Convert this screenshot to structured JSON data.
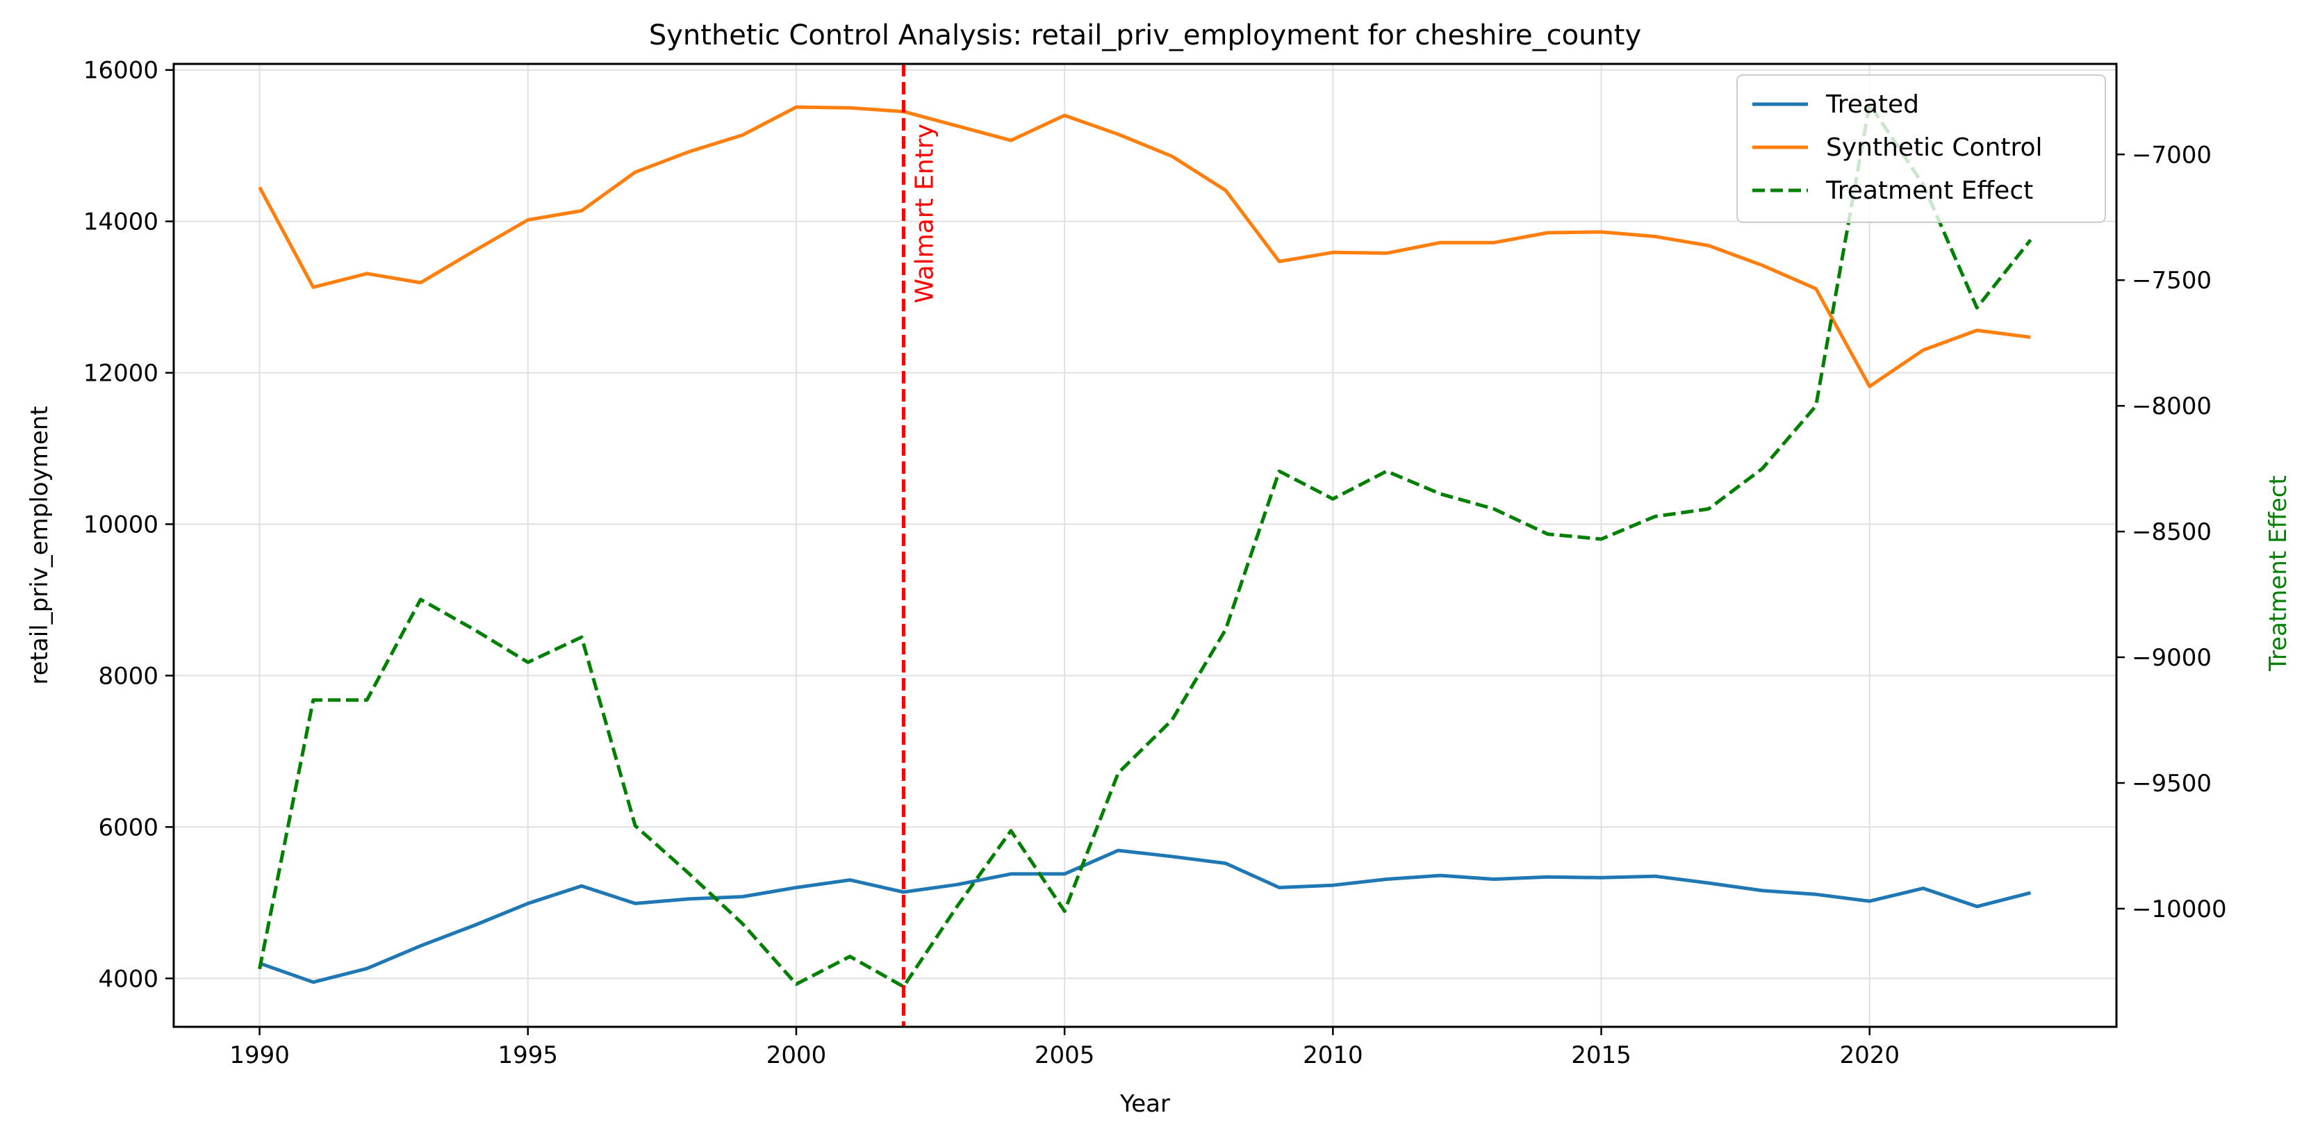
{
  "chart_data": {
    "type": "line",
    "title": "Synthetic Control Analysis: retail_priv_employment for cheshire_county",
    "xlabel": "Year",
    "ylabel": "retail_priv_employment",
    "y2label": "Treatment Effect",
    "xlim": [
      1988.4,
      2024.6
    ],
    "ylim": [
      3360,
      16080
    ],
    "y2lim": [
      -10470,
      -6640
    ],
    "xticks": [
      1990,
      1995,
      2000,
      2005,
      2010,
      2015,
      2020
    ],
    "yticks": [
      4000,
      6000,
      8000,
      10000,
      12000,
      14000,
      16000
    ],
    "y2ticks": [
      -10000,
      -9500,
      -9000,
      -8500,
      -8000,
      -7500,
      -7000
    ],
    "grid": true,
    "legend_position": "top-right",
    "annotation": {
      "label": "Walmart Entry",
      "x": 2002,
      "color": "#ff0000"
    },
    "x": [
      1990,
      1991,
      1992,
      1993,
      1994,
      1995,
      1996,
      1997,
      1998,
      1999,
      2000,
      2001,
      2002,
      2003,
      2004,
      2005,
      2006,
      2007,
      2008,
      2009,
      2010,
      2011,
      2012,
      2013,
      2014,
      2015,
      2016,
      2017,
      2018,
      2019,
      2020,
      2021,
      2022,
      2023
    ],
    "series": [
      {
        "name": "Treated",
        "axis": "left",
        "color": "#1f77b4",
        "style": "solid",
        "values": [
          4200,
          3950,
          4130,
          4430,
          4700,
          4990,
          5220,
          4990,
          5050,
          5080,
          5200,
          5300,
          5140,
          5240,
          5380,
          5380,
          5690,
          5610,
          5520,
          5200,
          5230,
          5310,
          5360,
          5310,
          5340,
          5330,
          5350,
          5260,
          5160,
          5110,
          5020,
          5190,
          4950,
          5130
        ]
      },
      {
        "name": "Synthetic Control",
        "axis": "left",
        "color": "#ff7f0e",
        "style": "solid",
        "values": [
          14450,
          13130,
          13310,
          13190,
          13610,
          14020,
          14140,
          14650,
          14920,
          15140,
          15510,
          15500,
          15450,
          15260,
          15070,
          15400,
          15150,
          14860,
          14410,
          13470,
          13590,
          13580,
          13720,
          13720,
          13850,
          13860,
          13800,
          13680,
          13420,
          13110,
          11820,
          12300,
          12560,
          12470
        ]
      },
      {
        "name": "Treatment Effect",
        "axis": "right",
        "color": "#008000",
        "style": "dashed",
        "values": [
          -10240,
          -9170,
          -9170,
          -8770,
          -8890,
          -9020,
          -8920,
          -9670,
          -9860,
          -10060,
          -10300,
          -10190,
          -10310,
          -9990,
          -9690,
          -10010,
          -9460,
          -9250,
          -8890,
          -8260,
          -8370,
          -8260,
          -8350,
          -8410,
          -8510,
          -8530,
          -8440,
          -8410,
          -8250,
          -8000,
          -6800,
          -7120,
          -7610,
          -7340
        ]
      }
    ]
  }
}
